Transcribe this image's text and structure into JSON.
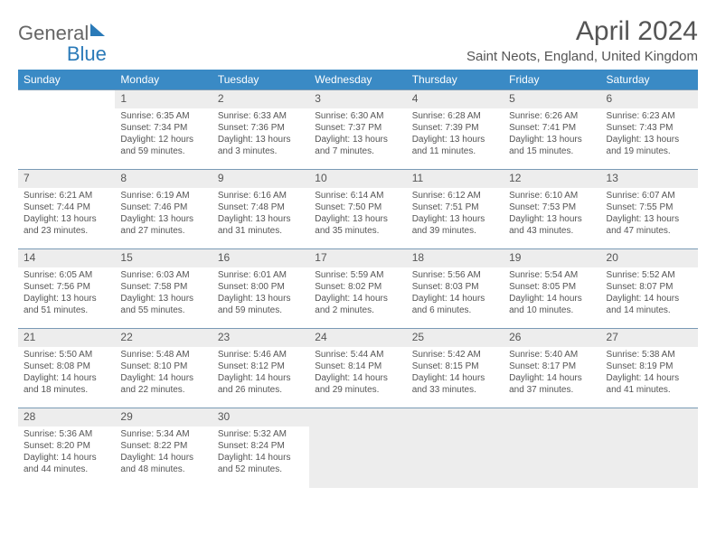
{
  "header": {
    "logo_general": "General",
    "logo_blue": "Blue",
    "month_title": "April 2024",
    "location": "Saint Neots, England, United Kingdom"
  },
  "colors": {
    "header_bg": "#3a8ac5",
    "daynum_bg": "#ededed",
    "border": "#7a9ab5"
  },
  "days_of_week": [
    "Sunday",
    "Monday",
    "Tuesday",
    "Wednesday",
    "Thursday",
    "Friday",
    "Saturday"
  ],
  "weeks": [
    [
      null,
      {
        "n": "1",
        "sr": "6:35 AM",
        "ss": "7:34 PM",
        "dl": "12 hours and 59 minutes."
      },
      {
        "n": "2",
        "sr": "6:33 AM",
        "ss": "7:36 PM",
        "dl": "13 hours and 3 minutes."
      },
      {
        "n": "3",
        "sr": "6:30 AM",
        "ss": "7:37 PM",
        "dl": "13 hours and 7 minutes."
      },
      {
        "n": "4",
        "sr": "6:28 AM",
        "ss": "7:39 PM",
        "dl": "13 hours and 11 minutes."
      },
      {
        "n": "5",
        "sr": "6:26 AM",
        "ss": "7:41 PM",
        "dl": "13 hours and 15 minutes."
      },
      {
        "n": "6",
        "sr": "6:23 AM",
        "ss": "7:43 PM",
        "dl": "13 hours and 19 minutes."
      }
    ],
    [
      {
        "n": "7",
        "sr": "6:21 AM",
        "ss": "7:44 PM",
        "dl": "13 hours and 23 minutes."
      },
      {
        "n": "8",
        "sr": "6:19 AM",
        "ss": "7:46 PM",
        "dl": "13 hours and 27 minutes."
      },
      {
        "n": "9",
        "sr": "6:16 AM",
        "ss": "7:48 PM",
        "dl": "13 hours and 31 minutes."
      },
      {
        "n": "10",
        "sr": "6:14 AM",
        "ss": "7:50 PM",
        "dl": "13 hours and 35 minutes."
      },
      {
        "n": "11",
        "sr": "6:12 AM",
        "ss": "7:51 PM",
        "dl": "13 hours and 39 minutes."
      },
      {
        "n": "12",
        "sr": "6:10 AM",
        "ss": "7:53 PM",
        "dl": "13 hours and 43 minutes."
      },
      {
        "n": "13",
        "sr": "6:07 AM",
        "ss": "7:55 PM",
        "dl": "13 hours and 47 minutes."
      }
    ],
    [
      {
        "n": "14",
        "sr": "6:05 AM",
        "ss": "7:56 PM",
        "dl": "13 hours and 51 minutes."
      },
      {
        "n": "15",
        "sr": "6:03 AM",
        "ss": "7:58 PM",
        "dl": "13 hours and 55 minutes."
      },
      {
        "n": "16",
        "sr": "6:01 AM",
        "ss": "8:00 PM",
        "dl": "13 hours and 59 minutes."
      },
      {
        "n": "17",
        "sr": "5:59 AM",
        "ss": "8:02 PM",
        "dl": "14 hours and 2 minutes."
      },
      {
        "n": "18",
        "sr": "5:56 AM",
        "ss": "8:03 PM",
        "dl": "14 hours and 6 minutes."
      },
      {
        "n": "19",
        "sr": "5:54 AM",
        "ss": "8:05 PM",
        "dl": "14 hours and 10 minutes."
      },
      {
        "n": "20",
        "sr": "5:52 AM",
        "ss": "8:07 PM",
        "dl": "14 hours and 14 minutes."
      }
    ],
    [
      {
        "n": "21",
        "sr": "5:50 AM",
        "ss": "8:08 PM",
        "dl": "14 hours and 18 minutes."
      },
      {
        "n": "22",
        "sr": "5:48 AM",
        "ss": "8:10 PM",
        "dl": "14 hours and 22 minutes."
      },
      {
        "n": "23",
        "sr": "5:46 AM",
        "ss": "8:12 PM",
        "dl": "14 hours and 26 minutes."
      },
      {
        "n": "24",
        "sr": "5:44 AM",
        "ss": "8:14 PM",
        "dl": "14 hours and 29 minutes."
      },
      {
        "n": "25",
        "sr": "5:42 AM",
        "ss": "8:15 PM",
        "dl": "14 hours and 33 minutes."
      },
      {
        "n": "26",
        "sr": "5:40 AM",
        "ss": "8:17 PM",
        "dl": "14 hours and 37 minutes."
      },
      {
        "n": "27",
        "sr": "5:38 AM",
        "ss": "8:19 PM",
        "dl": "14 hours and 41 minutes."
      }
    ],
    [
      {
        "n": "28",
        "sr": "5:36 AM",
        "ss": "8:20 PM",
        "dl": "14 hours and 44 minutes."
      },
      {
        "n": "29",
        "sr": "5:34 AM",
        "ss": "8:22 PM",
        "dl": "14 hours and 48 minutes."
      },
      {
        "n": "30",
        "sr": "5:32 AM",
        "ss": "8:24 PM",
        "dl": "14 hours and 52 minutes."
      },
      null,
      null,
      null,
      null
    ]
  ],
  "labels": {
    "sunrise": "Sunrise:",
    "sunset": "Sunset:",
    "daylight": "Daylight:"
  }
}
